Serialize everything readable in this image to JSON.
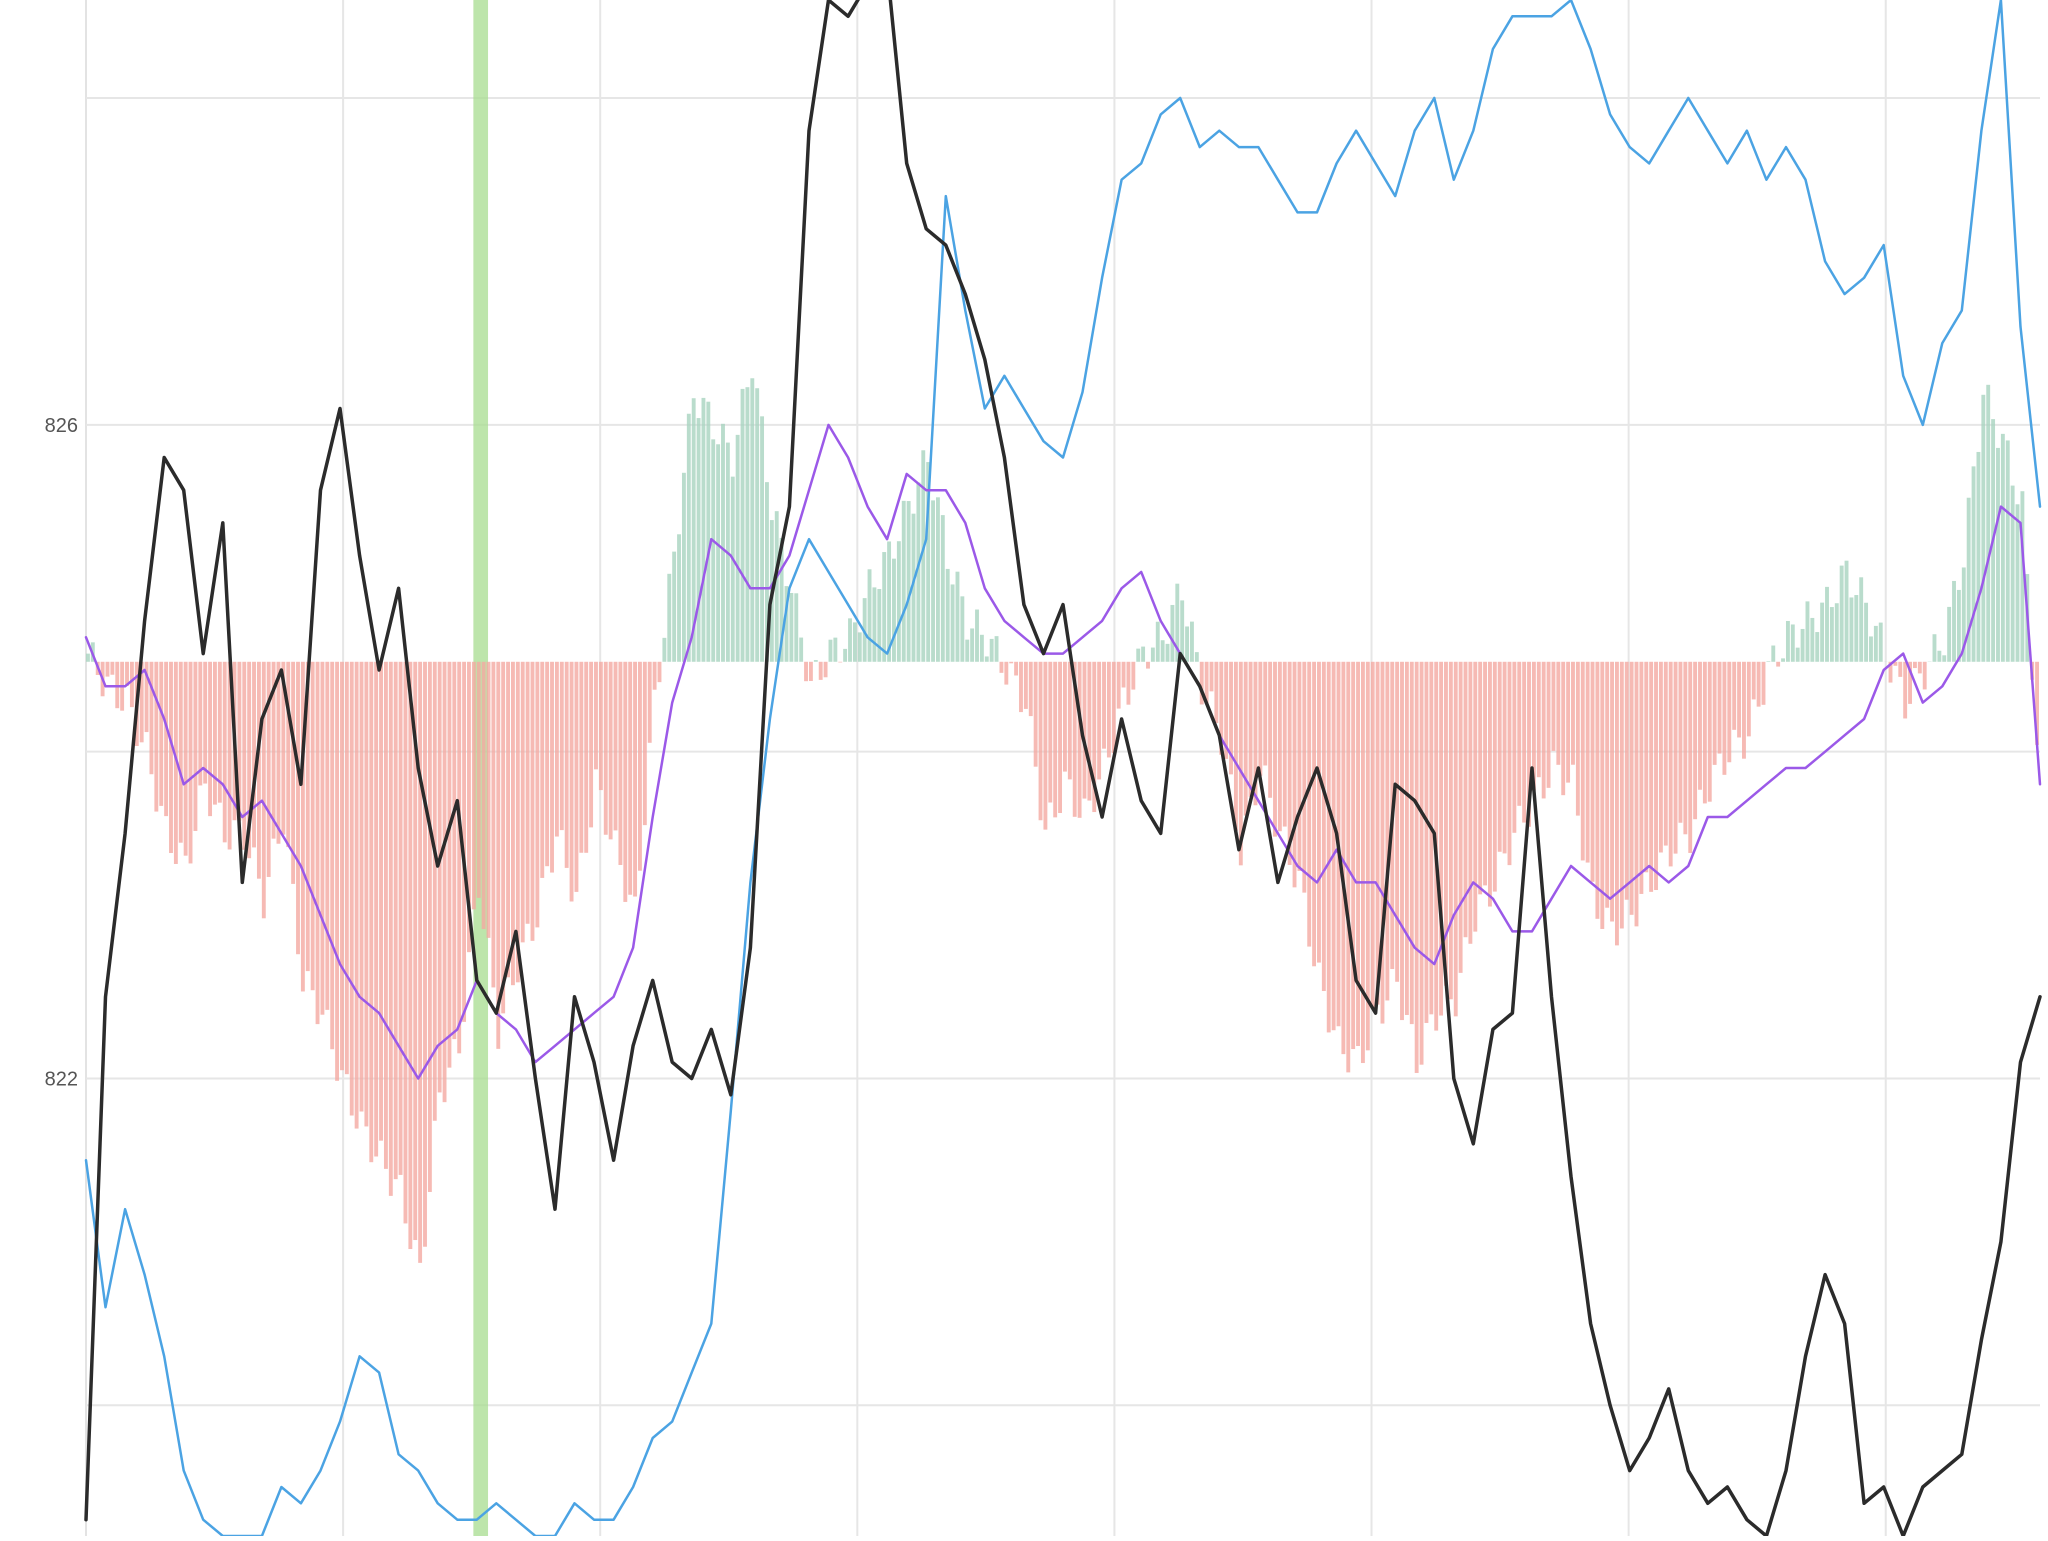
{
  "chart_data": {
    "type": "line",
    "title": "",
    "xlabel": "",
    "ylabel": "",
    "ylim": [
      819.2,
      828.6
    ],
    "y_tick_labels": [
      "826",
      "822"
    ],
    "y_ticks": [
      826,
      822
    ],
    "y_gridlines": [
      828,
      826,
      824,
      822,
      820
    ],
    "x_gridline_count": 7,
    "grid": true,
    "legend": "none",
    "colors": {
      "price": "#2b2b2b",
      "blue": "#4ba3e3",
      "purple": "#9b59e8",
      "hist_positive": "#a8d3bf",
      "hist_negative": "#f4a9a1",
      "highlight_band": "#a7dc8f"
    },
    "hist_baseline": 824.55,
    "highlight_x": [
      79.3,
      82.3
    ],
    "x": [
      0,
      4,
      8,
      12,
      16,
      20,
      24,
      28,
      32,
      36,
      40,
      44,
      48,
      52,
      56,
      60,
      64,
      68,
      72,
      76,
      80,
      84,
      88,
      92,
      96,
      100,
      104,
      108,
      112,
      116,
      120,
      124,
      128,
      132,
      136,
      140,
      144,
      148,
      152,
      156,
      160,
      164,
      168,
      172,
      176,
      180,
      184,
      188,
      192,
      196,
      200,
      204,
      208,
      212,
      216,
      220,
      224,
      228,
      232,
      236,
      240,
      244,
      248,
      252,
      256,
      260,
      264,
      268,
      272,
      276,
      280,
      284,
      288,
      292,
      296,
      300,
      304,
      308,
      312,
      316,
      320,
      324,
      328,
      332,
      336,
      340,
      344,
      348,
      352,
      356,
      360,
      364,
      368,
      372,
      376,
      380,
      384,
      388,
      392,
      396,
      400
    ],
    "series": [
      {
        "key": "price",
        "values": [
          819.3,
          822.5,
          823.5,
          824.8,
          825.8,
          825.6,
          824.6,
          825.4,
          823.2,
          824.2,
          824.5,
          823.8,
          825.6,
          826.1,
          825.2,
          824.5,
          825.0,
          823.9,
          823.3,
          823.7,
          822.6,
          822.4,
          822.9,
          822.0,
          821.2,
          822.5,
          822.1,
          821.5,
          822.2,
          822.6,
          822.1,
          822.0,
          822.3,
          821.9,
          822.8,
          824.9,
          825.5,
          827.8,
          828.6,
          828.5,
          828.7,
          828.8,
          827.6,
          827.2,
          827.1,
          826.8,
          826.4,
          825.8,
          824.9,
          824.6,
          824.9,
          824.1,
          823.6,
          824.2,
          823.7,
          823.5,
          824.6,
          824.4,
          824.1,
          823.4,
          823.9,
          823.2,
          823.6,
          823.9,
          823.5,
          822.6,
          822.4,
          823.8,
          823.7,
          823.5,
          822.0,
          821.6,
          822.3,
          822.4,
          823.9,
          822.5,
          821.4,
          820.5,
          820.0,
          819.6,
          819.8,
          820.1,
          819.6,
          819.4,
          819.5,
          819.3,
          819.2,
          819.6,
          820.3,
          820.8,
          820.5,
          819.4,
          819.5,
          819.2,
          819.5,
          819.6,
          819.7,
          820.4,
          821.0,
          822.1,
          822.5
        ]
      },
      {
        "key": "blue",
        "values": [
          821.5,
          820.6,
          821.2,
          820.8,
          820.3,
          819.6,
          819.3,
          819.2,
          819.2,
          819.2,
          819.5,
          819.4,
          819.6,
          819.9,
          820.3,
          820.2,
          819.7,
          819.6,
          819.4,
          819.3,
          819.3,
          819.4,
          819.3,
          819.2,
          819.2,
          819.4,
          819.3,
          819.3,
          819.5,
          819.8,
          819.9,
          820.2,
          820.5,
          821.8,
          823.2,
          824.2,
          825.0,
          825.3,
          825.1,
          824.9,
          824.7,
          824.6,
          824.9,
          825.3,
          827.4,
          826.7,
          826.1,
          826.3,
          826.1,
          825.9,
          825.8,
          826.2,
          826.9,
          827.5,
          827.6,
          827.9,
          828.0,
          827.7,
          827.8,
          827.7,
          827.7,
          827.5,
          827.3,
          827.3,
          827.6,
          827.8,
          827.6,
          827.4,
          827.8,
          828.0,
          827.5,
          827.8,
          828.3,
          828.5,
          828.5,
          828.5,
          828.6,
          828.3,
          827.9,
          827.7,
          827.6,
          827.8,
          828.0,
          827.8,
          827.6,
          827.8,
          827.5,
          827.7,
          827.5,
          827.0,
          826.8,
          826.9,
          827.1,
          826.3,
          826.0,
          826.5,
          826.7,
          827.8,
          828.6,
          826.6,
          825.5
        ]
      },
      {
        "key": "purple",
        "values": [
          824.7,
          824.4,
          824.4,
          824.5,
          824.2,
          823.8,
          823.9,
          823.8,
          823.6,
          823.7,
          823.5,
          823.3,
          823.0,
          822.7,
          822.5,
          822.4,
          822.2,
          822.0,
          822.2,
          822.3,
          822.6,
          822.4,
          822.3,
          822.1,
          822.2,
          822.3,
          822.4,
          822.5,
          822.8,
          823.6,
          824.3,
          824.7,
          825.3,
          825.2,
          825.0,
          825.0,
          825.2,
          825.6,
          826.0,
          825.8,
          825.5,
          825.3,
          825.7,
          825.6,
          825.6,
          825.4,
          825.0,
          824.8,
          824.7,
          824.6,
          824.6,
          824.7,
          824.8,
          825.0,
          825.1,
          824.8,
          824.6,
          824.4,
          824.1,
          823.9,
          823.7,
          823.5,
          823.3,
          823.2,
          823.4,
          823.2,
          823.2,
          823.0,
          822.8,
          822.7,
          823.0,
          823.2,
          823.1,
          822.9,
          822.9,
          823.1,
          823.3,
          823.2,
          823.1,
          823.2,
          823.3,
          823.2,
          823.3,
          823.6,
          823.6,
          823.7,
          823.8,
          823.9,
          823.9,
          824.0,
          824.1,
          824.2,
          824.5,
          824.6,
          824.3,
          824.4,
          824.6,
          825.0,
          825.5,
          825.4,
          823.8
        ]
      },
      {
        "key": "histogram",
        "values": [
          824.6,
          824.4,
          824.3,
          824.0,
          823.5,
          823.3,
          823.8,
          823.5,
          823.5,
          823.1,
          823.6,
          822.6,
          822.4,
          822.0,
          821.7,
          821.5,
          821.3,
          820.8,
          821.9,
          822.2,
          823.2,
          822.3,
          822.7,
          823.0,
          823.5,
          823.1,
          823.8,
          823.4,
          823.0,
          824.3,
          825.2,
          826.2,
          826.0,
          825.8,
          826.4,
          825.5,
          825.0,
          824.4,
          824.6,
          824.7,
          825.0,
          825.2,
          825.5,
          825.8,
          825.2,
          824.8,
          824.7,
          824.5,
          824.3,
          823.5,
          823.8,
          823.6,
          823.9,
          824.3,
          824.6,
          824.7,
          825.0,
          824.4,
          824.1,
          823.4,
          823.9,
          823.5,
          823.2,
          822.6,
          822.2,
          822.1,
          822.4,
          822.6,
          822.1,
          822.4,
          822.5,
          823.0,
          823.2,
          823.5,
          823.7,
          823.9,
          823.8,
          823.1,
          822.9,
          823.0,
          823.2,
          823.4,
          823.5,
          823.8,
          824.0,
          824.1,
          824.5,
          824.7,
          824.8,
          824.9,
          825.1,
          824.9,
          824.6,
          824.3,
          824.5,
          824.7,
          825.2,
          826.2,
          825.9,
          825.5,
          823.6
        ]
      }
    ]
  }
}
